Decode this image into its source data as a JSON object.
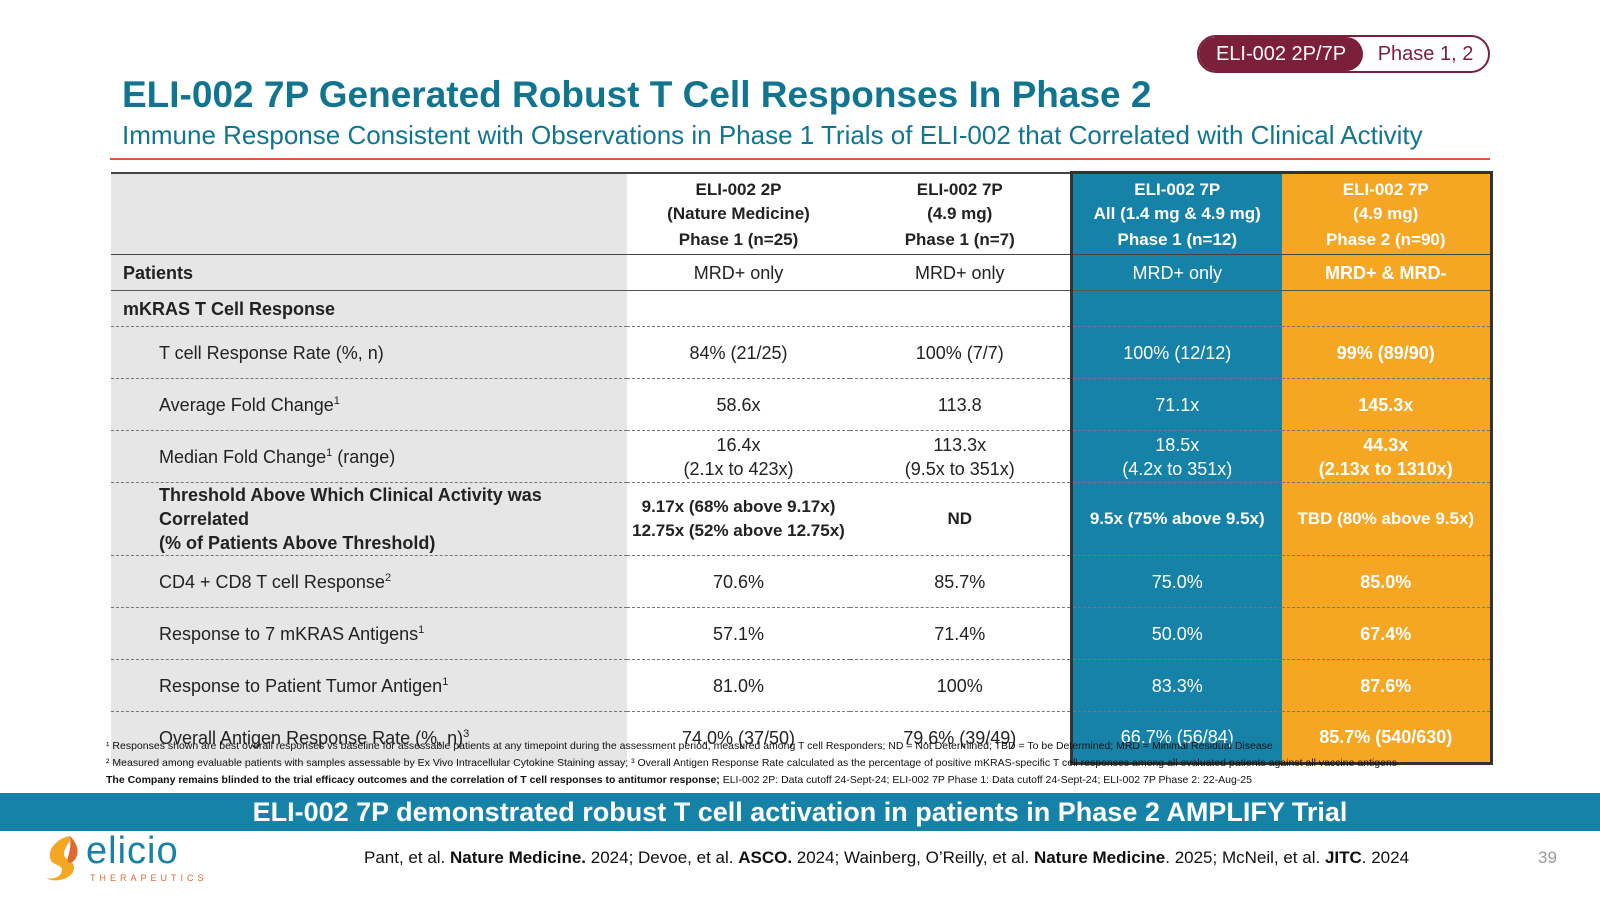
{
  "badge": {
    "left": "ELI-002 2P/7P",
    "right": "Phase 1, 2"
  },
  "title": "ELI-002 7P Generated Robust T Cell Responses In Phase 2",
  "subtitle": "Immune Response Consistent with Observations in Phase 1 Trials of ELI-002 that Correlated with Clinical Activity",
  "table": {
    "columns": [
      {
        "line1": "ELI-002 2P",
        "line2": "(Nature Medicine)",
        "phase": "Phase 1 (n=25)"
      },
      {
        "line1": "ELI-002 7P",
        "line2": "(4.9 mg)",
        "phase": "Phase 1 (n=7)"
      },
      {
        "line1": "ELI-002 7P",
        "line2": "All (1.4 mg & 4.9 mg)",
        "phase": "Phase 1 (n=12)"
      },
      {
        "line1": "ELI-002 7P",
        "line2": "(4.9 mg)",
        "phase": "Phase 2 (n=90)"
      }
    ],
    "patients": {
      "label": "Patients",
      "values": [
        "MRD+ only",
        "MRD+ only",
        "MRD+ only",
        "MRD+ & MRD-"
      ]
    },
    "section": "mKRAS T Cell Response",
    "rows": [
      {
        "label": "T cell Response Rate (%, n)",
        "sup": "",
        "suffix": "",
        "values": [
          "84% (21/25)",
          "100% (7/7)",
          "100% (12/12)",
          "99% (89/90)"
        ]
      },
      {
        "label": "Average Fold Change",
        "sup": "1",
        "suffix": "",
        "values": [
          "58.6x",
          "113.8",
          "71.1x",
          "145.3x"
        ]
      },
      {
        "label": "Median Fold Change",
        "sup": "1",
        "suffix": " (range)",
        "values": [
          "16.4x",
          "113.3x",
          "18.5x",
          "44.3x"
        ],
        "values2": [
          "(2.1x to 423x)",
          "(9.5x to 351x)",
          "(4.2x to 351x)",
          "(2.13x to 1310x)"
        ]
      }
    ],
    "threshold": {
      "label1": "Threshold Above Which Clinical Activity was Correlated",
      "label2": "(% of Patients Above Threshold)",
      "c1a": "9.17x (68% above 9.17x)",
      "c1b": "12.75x (52% above 12.75x)",
      "c2": "ND",
      "c3": "9.5x (75% above 9.5x)",
      "c4": "TBD (80% above 9.5x)"
    },
    "rows2": [
      {
        "label": "CD4 + CD8 T cell Response",
        "sup": "2",
        "values": [
          "70.6%",
          "85.7%",
          "75.0%",
          "85.0%"
        ]
      },
      {
        "label": "Response to 7 mKRAS Antigens",
        "sup": "1",
        "values": [
          "57.1%",
          "71.4%",
          "50.0%",
          "67.4%"
        ]
      },
      {
        "label": "Response to Patient Tumor Antigen",
        "sup": "1",
        "values": [
          "81.0%",
          "100%",
          "83.3%",
          "87.6%"
        ]
      },
      {
        "label": "Overall Antigen Response Rate (%, n)",
        "sup": "3",
        "values": [
          "74.0% (37/50)",
          "79.6% (39/49)",
          "66.7% (56/84)",
          "85.7% (540/630)"
        ]
      }
    ]
  },
  "footnotes": {
    "f1": "¹ Responses shown are best overall responses vs baseline for assessable patients at any timepoint during the assessment period, measured among T cell Responders; ND = Not Determined; TBD = To be Determined; MRD = Minimal Residual Disease",
    "f2": "² Measured among evaluable patients with samples assessable by Ex Vivo Intracellular Cytokine Staining assay; ³ Overall Antigen Response Rate calculated as the percentage of positive mKRAS-specific T cell responses among all evaluated patients against all vaccine antigens",
    "f3_bold": "The Company remains blinded to the trial efficacy outcomes and the correlation of T cell responses to antitumor response;",
    "f3_rest": " ELI-002 2P: Data cutoff 24-Sept-24; ELI-002 7P Phase 1: Data cutoff 24-Sept-24; ELI-002 7P Phase 2: 22-Aug-25"
  },
  "banner": "ELI-002 7P demonstrated robust T cell activation in patients in Phase 2 AMPLIFY Trial",
  "logo": {
    "word": "elicio",
    "sub": "THERAPEUTICS"
  },
  "references": {
    "a": "Pant, et al. ",
    "a_b": "Nature Medicine.",
    "b": " 2024; Devoe, et al. ",
    "b_b": "ASCO.",
    "c": " 2024; Wainberg, O’Reilly, et al. ",
    "c_b": "Nature Medicine",
    "d": ". 2025; McNeil, et al. ",
    "d_b": "JITC",
    "e": ". 2024"
  },
  "page_number": "39",
  "colors": {
    "teal": "#12758f",
    "blue": "#1782a8",
    "orange": "#f5a623",
    "maroon": "#7b1f3a",
    "rule": "#e05a3a"
  }
}
